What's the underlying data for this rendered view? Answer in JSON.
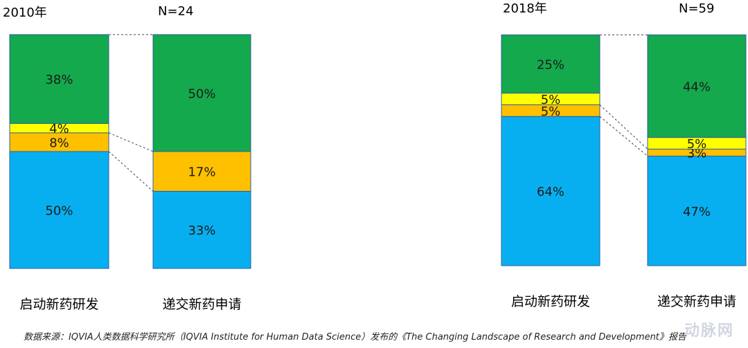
{
  "colors": {
    "green": "#14a94c",
    "yellow": "#ffff00",
    "orange": "#ffc000",
    "blue": "#08aff0",
    "border": "#2a5f9e"
  },
  "source_note": "数据来源：IQVIA人类数据科学研究所（IQVIA Institute for Human Data Science）发布的《The Changing Landscape of Research and Development》报告",
  "watermark": "动脉网",
  "chart_data": [
    {
      "type": "bar",
      "stacked": true,
      "percent": true,
      "title": "2010年",
      "count_label": "N=24",
      "categories": [
        "启动新药研发",
        "递交新药申请"
      ],
      "series": [
        {
          "color": "blue",
          "values": [
            50,
            33
          ]
        },
        {
          "color": "orange",
          "values": [
            8,
            17
          ]
        },
        {
          "color": "yellow",
          "values": [
            4,
            0
          ]
        },
        {
          "color": "green",
          "values": [
            38,
            50
          ]
        }
      ],
      "value_labels": [
        [
          "50%",
          "8%",
          "4%",
          "38%"
        ],
        [
          "33%",
          "17%",
          "",
          "50%"
        ]
      ]
    },
    {
      "type": "bar",
      "stacked": true,
      "percent": true,
      "title": "2018年",
      "count_label": "N=59",
      "categories": [
        "启动新药研发",
        "递交新药申请"
      ],
      "series": [
        {
          "color": "blue",
          "values": [
            64,
            47
          ]
        },
        {
          "color": "orange",
          "values": [
            5,
            3
          ]
        },
        {
          "color": "yellow",
          "values": [
            5,
            5
          ]
        },
        {
          "color": "green",
          "values": [
            25,
            44
          ]
        }
      ],
      "value_labels": [
        [
          "64%",
          "5%",
          "5%",
          "25%"
        ],
        [
          "47%",
          "3%",
          "5%",
          "44%"
        ]
      ]
    }
  ]
}
